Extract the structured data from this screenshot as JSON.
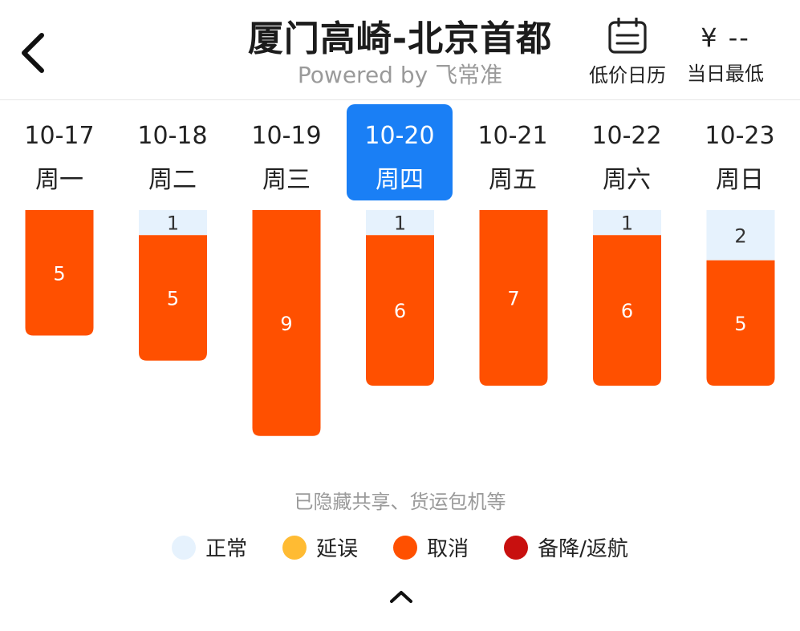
{
  "header": {
    "title": "厦门高崎-北京首都",
    "subtitle": "Powered by 飞常准",
    "calendar_label": "低价日历",
    "price_value": "¥ --",
    "price_label": "当日最低"
  },
  "days": [
    {
      "date": "10-17",
      "weekday": "周一",
      "selected": false
    },
    {
      "date": "10-18",
      "weekday": "周二",
      "selected": false
    },
    {
      "date": "10-19",
      "weekday": "周三",
      "selected": false
    },
    {
      "date": "10-20",
      "weekday": "周四",
      "selected": true
    },
    {
      "date": "10-21",
      "weekday": "周五",
      "selected": false
    },
    {
      "date": "10-22",
      "weekday": "周六",
      "selected": false
    },
    {
      "date": "10-23",
      "weekday": "周日",
      "selected": false
    }
  ],
  "chart_data": {
    "type": "bar",
    "stacked": true,
    "categories": [
      "10-17",
      "10-18",
      "10-19",
      "10-20",
      "10-21",
      "10-22",
      "10-23"
    ],
    "series": [
      {
        "name": "正常",
        "color": "#e6f2fd",
        "values": [
          0,
          1,
          0,
          1,
          0,
          1,
          2
        ]
      },
      {
        "name": "延误",
        "color": "#ffbb33",
        "values": [
          0,
          0,
          0,
          0,
          0,
          0,
          0
        ]
      },
      {
        "name": "取消",
        "color": "#ff5000",
        "values": [
          5,
          5,
          9,
          6,
          7,
          6,
          5
        ]
      },
      {
        "name": "备降/返航",
        "color": "#c8100f",
        "values": [
          0,
          0,
          0,
          0,
          0,
          0,
          0
        ]
      }
    ],
    "ylim": [
      0,
      9
    ]
  },
  "footer": {
    "note": "已隐藏共享、货运包机等"
  },
  "legend": [
    {
      "label": "正常",
      "color": "#e6f2fd"
    },
    {
      "label": "延误",
      "color": "#ffbb33"
    },
    {
      "label": "取消",
      "color": "#ff5000"
    },
    {
      "label": "备降/返航",
      "color": "#c8100f"
    }
  ],
  "icons": {
    "back": "back-chevron-icon",
    "calendar": "calendar-icon",
    "collapse": "chevron-up-icon"
  }
}
